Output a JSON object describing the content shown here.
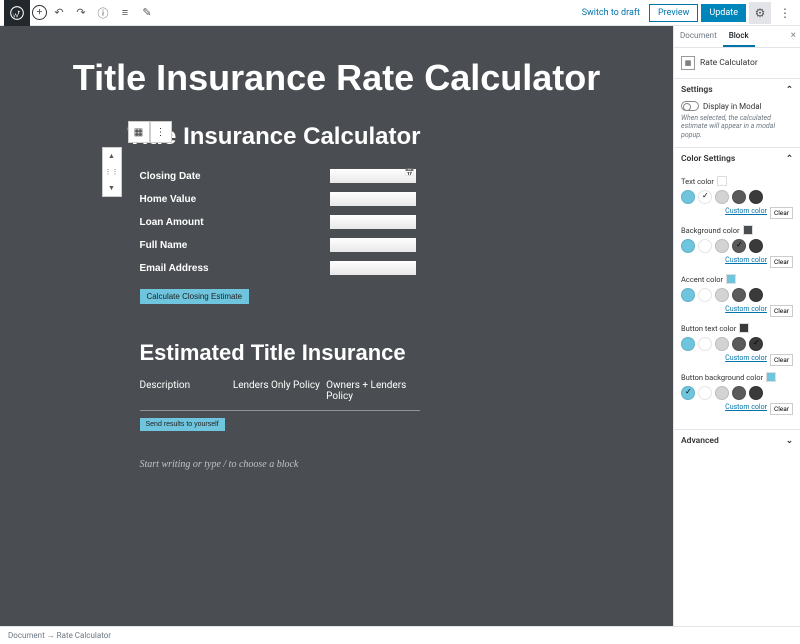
{
  "topbar": {
    "switch_to_draft": "Switch to draft",
    "preview": "Preview",
    "update": "Update"
  },
  "page": {
    "title": "Title Insurance Rate Calculator"
  },
  "calculator": {
    "heading": "Title Insurance Calculator",
    "fields": {
      "closing_date": "Closing Date",
      "home_value": "Home Value",
      "loan_amount": "Loan Amount",
      "full_name": "Full Name",
      "email": "Email Address"
    },
    "calc_button": "Calculate Closing Estimate",
    "estimated_heading": "Estimated Title Insurance",
    "table": {
      "col1": "Description",
      "col2": "Lenders Only Policy",
      "col3": "Owners + Lenders Policy"
    },
    "send_button": "Send results to yourself"
  },
  "editor": {
    "placeholder": "Start writing or type / to choose a block"
  },
  "sidebar": {
    "tabs": {
      "document": "Document",
      "block": "Block"
    },
    "block_name": "Rate Calculator",
    "sections": {
      "settings": "Settings",
      "color_settings": "Color Settings",
      "advanced": "Advanced"
    },
    "toggle": {
      "label": "Display in Modal",
      "help": "When selected, the calculated estimate will appear in a modal popup."
    },
    "colors": {
      "text": "Text color",
      "background": "Background color",
      "accent": "Accent color",
      "button_text": "Button text color",
      "button_bg": "Button background color",
      "custom": "Custom color",
      "clear": "Clear"
    },
    "palette": [
      "#6fc5dd",
      "#ffffff",
      "#d3d3d3",
      "#5a5a5a",
      "#3a3a3a"
    ],
    "swatches": {
      "text": "#ffffff",
      "background": "#4a4e52",
      "accent": "#6fc5dd",
      "button_text": "#3a3a3a",
      "button_bg": "#6fc5dd"
    },
    "checked": {
      "text": 1,
      "background": 3,
      "accent": -1,
      "button_text": 4,
      "button_bg": 0
    }
  },
  "footer": {
    "breadcrumb_doc": "Document",
    "breadcrumb_block": "Rate Calculator"
  }
}
